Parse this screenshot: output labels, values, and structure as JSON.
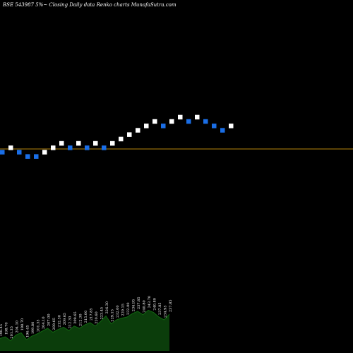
{
  "chart_data": {
    "type": "renko",
    "title": "BSE 543987 5%~  Closing Daily data  Renko  charts MunafaSutra.com",
    "colors": {
      "background": "#000000",
      "up_brick": "#ffffff",
      "down_brick": "#1a6ee6",
      "reference_line": "#b8860b",
      "volume_area": "#0b3d0b",
      "volume_line": "#116611"
    },
    "bricks": [
      {
        "dir": "down",
        "level": 0
      },
      {
        "dir": "up",
        "level": 1
      },
      {
        "dir": "down",
        "level": 0
      },
      {
        "dir": "down",
        "level": -1
      },
      {
        "dir": "down",
        "level": -1
      },
      {
        "dir": "up",
        "level": 0
      },
      {
        "dir": "up",
        "level": 1
      },
      {
        "dir": "up",
        "level": 2
      },
      {
        "dir": "down",
        "level": 1
      },
      {
        "dir": "up",
        "level": 2
      },
      {
        "dir": "down",
        "level": 1
      },
      {
        "dir": "up",
        "level": 2
      },
      {
        "dir": "down",
        "level": 1
      },
      {
        "dir": "up",
        "level": 2
      },
      {
        "dir": "up",
        "level": 3
      },
      {
        "dir": "up",
        "level": 4
      },
      {
        "dir": "up",
        "level": 5
      },
      {
        "dir": "up",
        "level": 6
      },
      {
        "dir": "up",
        "level": 7
      },
      {
        "dir": "down",
        "level": 6
      },
      {
        "dir": "up",
        "level": 7
      },
      {
        "dir": "up",
        "level": 8
      },
      {
        "dir": "down",
        "level": 7
      },
      {
        "dir": "up",
        "level": 8
      },
      {
        "dir": "down",
        "level": 7
      },
      {
        "dir": "down",
        "level": 6
      },
      {
        "dir": "down",
        "level": 5
      },
      {
        "dir": "up",
        "level": 6
      }
    ],
    "volume_labels": [
      "196.45",
      "198.70",
      "201.35",
      "204.10",
      "198.70",
      "196.45",
      "199.80",
      "201.35",
      "204.10",
      "207.00",
      "209.65",
      "212.30",
      "209.65",
      "212.30",
      "209.65",
      "212.30",
      "215.00",
      "217.85",
      "220.60",
      "223.45",
      "226.30",
      "229.15",
      "232.00",
      "229.15",
      "232.00",
      "234.95",
      "237.85",
      "240.80",
      "243.70",
      "240.80",
      "237.85",
      "234.95",
      "237.85"
    ],
    "volume": [
      0.22,
      0.25,
      0.18,
      0.28,
      0.32,
      0.2,
      0.26,
      0.3,
      0.35,
      0.4,
      0.33,
      0.38,
      0.42,
      0.36,
      0.44,
      0.4,
      0.46,
      0.5,
      0.44,
      0.52,
      0.62,
      0.48,
      0.55,
      0.58,
      0.6,
      0.66,
      0.7,
      0.64,
      0.72,
      0.68,
      0.6,
      0.55,
      0.65
    ]
  }
}
